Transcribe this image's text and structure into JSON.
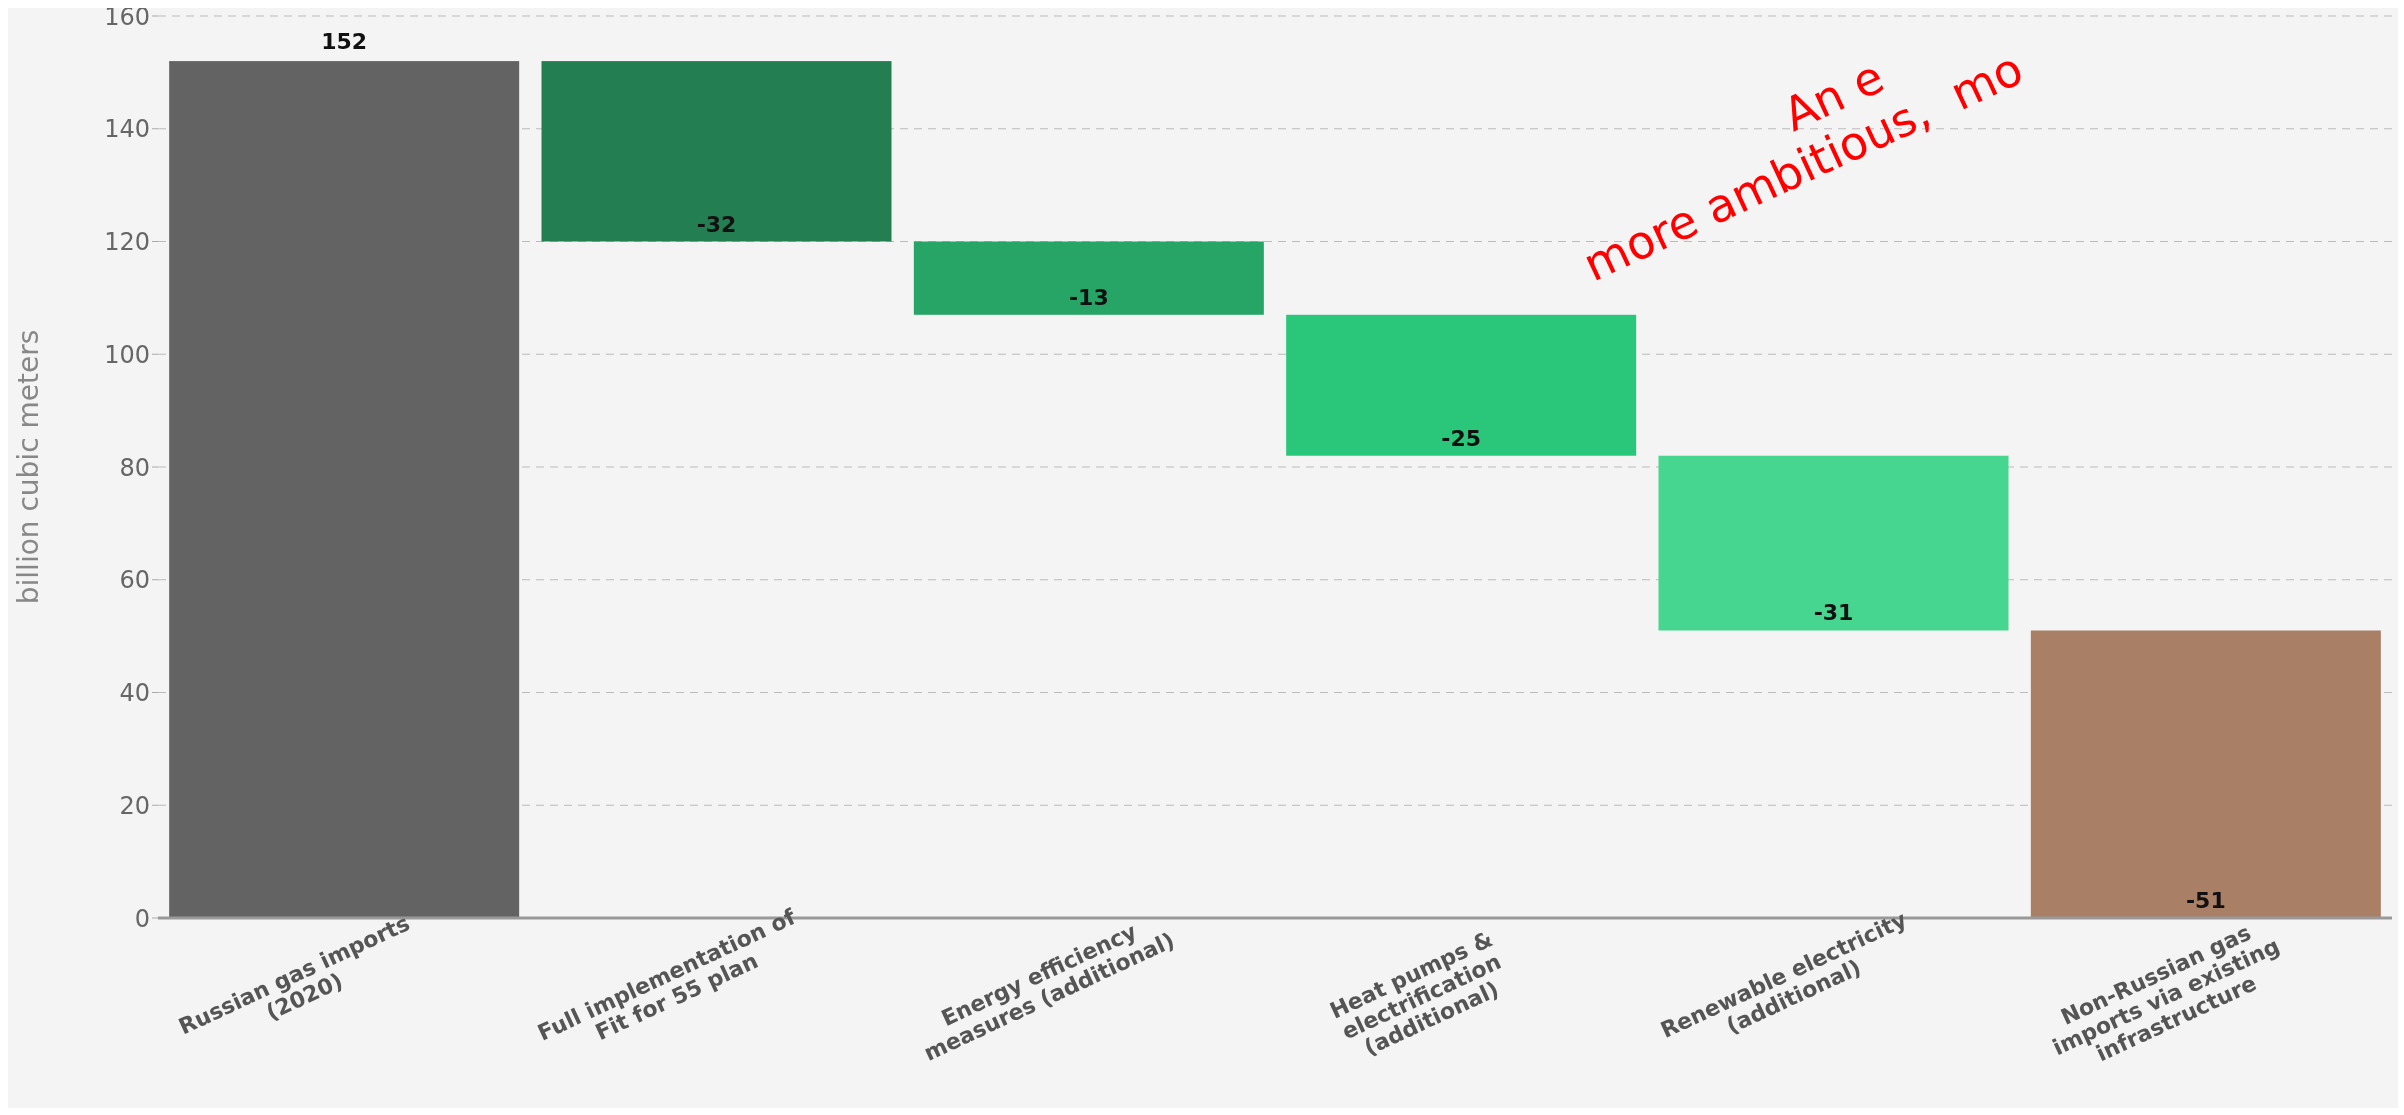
{
  "chart_data": {
    "type": "bar",
    "ylabel": "billion cubic meters",
    "categories": [
      "Russian gas imports (2020)",
      "Full implementation of Fit for 55 plan",
      "Energy efficiency measures (additional)",
      "Heat pumps & electrification (additional)",
      "Renewable electricity (additional)",
      "Non-Russian gas imports via existing infrastructure"
    ],
    "values": [
      152,
      -32,
      -13,
      -25,
      -31,
      -51
    ],
    "base": [
      0,
      152,
      120,
      107,
      82,
      51
    ],
    "colors": [
      "#636363",
      "#237f52",
      "#27a567",
      "#2ac77a",
      "#47d68f",
      "#a97f66"
    ],
    "ylim": [
      0,
      160
    ],
    "yticks": [
      0,
      20,
      40,
      60,
      80,
      100,
      120,
      140,
      160
    ],
    "grid": "y",
    "data_labels": true,
    "annotations": [
      "An e",
      "more ambitious,  mo"
    ]
  }
}
